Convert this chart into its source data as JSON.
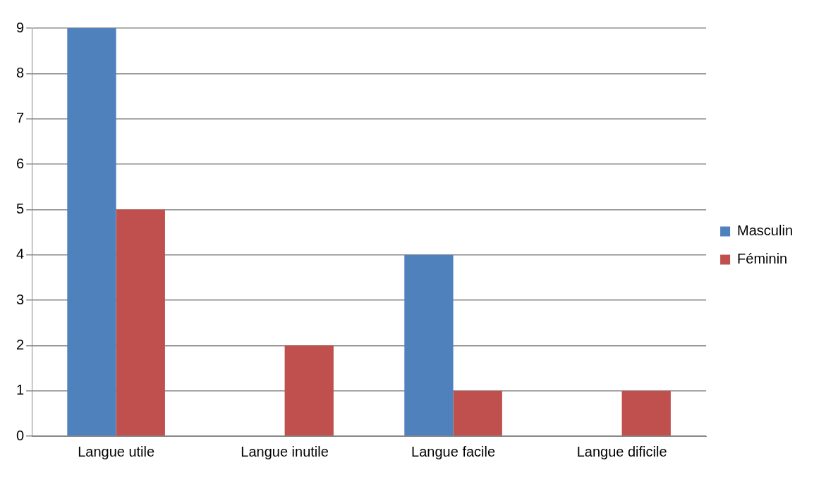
{
  "chart_data": {
    "type": "bar",
    "categories": [
      "Langue utile",
      "Langue inutile",
      "Langue facile",
      "Langue dificile"
    ],
    "series": [
      {
        "name": "Masculin",
        "color": "#4f81bd",
        "values": [
          9,
          0,
          4,
          0
        ]
      },
      {
        "name": "Féminin",
        "color": "#c0504d",
        "values": [
          5,
          2,
          1,
          1
        ]
      }
    ],
    "ylim": [
      0,
      9
    ],
    "yticks": [
      0,
      1,
      2,
      3,
      4,
      5,
      6,
      7,
      8,
      9
    ],
    "grid": "y",
    "legend": "right"
  }
}
